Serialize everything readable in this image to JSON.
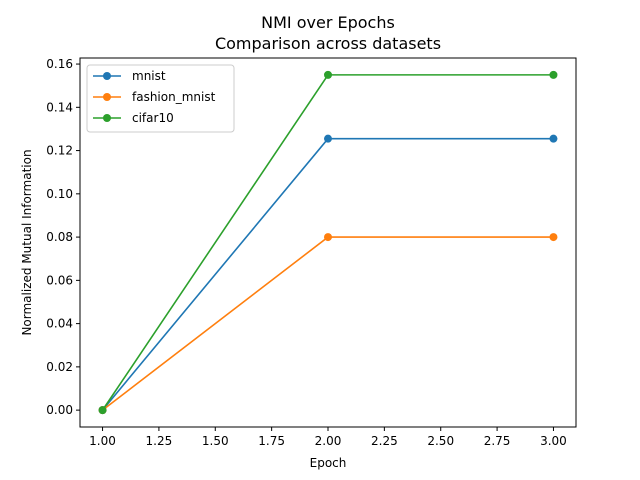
{
  "chart_data": {
    "type": "line",
    "title": "NMI over Epochs",
    "subtitle": "Comparison across datasets",
    "xlabel": "Epoch",
    "ylabel": "Normalized Mutual Information",
    "xlim": [
      0.9,
      3.1
    ],
    "ylim": [
      -0.0078,
      0.1628
    ],
    "xticks": [
      "1.00",
      "1.25",
      "1.50",
      "1.75",
      "2.00",
      "2.25",
      "2.50",
      "2.75",
      "3.00"
    ],
    "yticks": [
      "0.00",
      "0.02",
      "0.04",
      "0.06",
      "0.08",
      "0.10",
      "0.12",
      "0.14",
      "0.16"
    ],
    "grid": false,
    "legend_position": "upper-left",
    "x": [
      1,
      2,
      3
    ],
    "series": [
      {
        "name": "mnist",
        "color": "#1f77b4",
        "values": [
          0.0,
          0.1255,
          0.1255
        ]
      },
      {
        "name": "fashion_mnist",
        "color": "#ff7f0e",
        "values": [
          0.0,
          0.08,
          0.08
        ]
      },
      {
        "name": "cifar10",
        "color": "#2ca02c",
        "values": [
          0.0,
          0.155,
          0.155
        ]
      }
    ]
  }
}
